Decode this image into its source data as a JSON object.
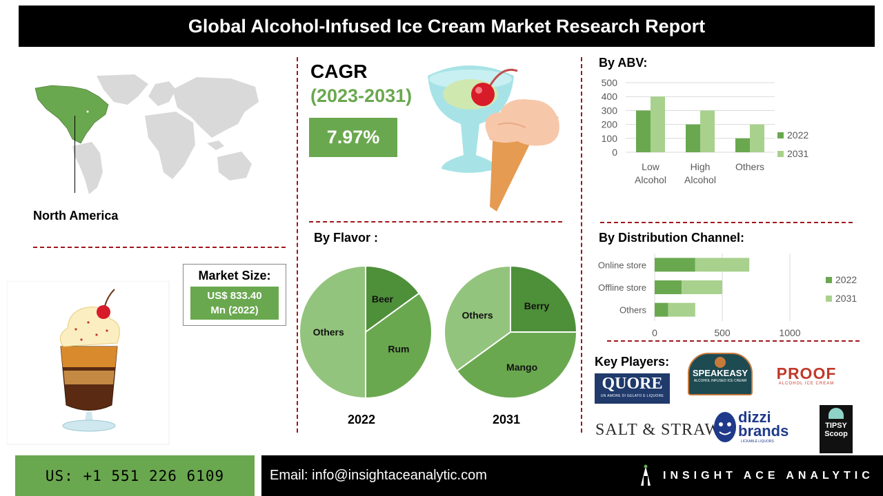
{
  "header": {
    "title": "Global Alcohol-Infused Ice Cream Market Research Report"
  },
  "region": {
    "label": "North America"
  },
  "cagr": {
    "title": "CAGR",
    "period": "(2023-2031)",
    "value": "7.97%"
  },
  "market_size": {
    "label": "Market Size:",
    "value_line1": "US$ 833.40",
    "value_line2": "Mn (2022)"
  },
  "sections": {
    "abv": "By ABV:",
    "flavor": "By Flavor :",
    "distribution": "By Distribution Channel:",
    "key_players": "Key Players:"
  },
  "key_players": [
    {
      "name": "QUORE",
      "tagline": "UN AMORE DI GELATO E LIQUORE"
    },
    {
      "name": "SPEAKEASY",
      "tagline": "ALCOHOL INFUSED ICE CREAM"
    },
    {
      "name": "PROOF",
      "tagline": "ALCOHOL ICE CREAM"
    },
    {
      "name": "SALT & STRAW"
    },
    {
      "name": "dizzi brands",
      "tagline": "LICKABLE LIQUORS"
    },
    {
      "name": "TIPSY Scoop"
    }
  ],
  "footer": {
    "phone": "US: +1 551 226 6109",
    "email": "Email: info@insightaceanalytic.com",
    "brand": "INSIGHT ACE ANALYTIC"
  },
  "colors": {
    "dark_green": "#6aa84f",
    "light_green": "#a9d18e",
    "mid_green": "#93c47d",
    "deep_green": "#4e8f3a",
    "dash_red": "#a01418"
  },
  "chart_data": [
    {
      "type": "bar",
      "title": "By ABV:",
      "categories": [
        "Low Alcohol",
        "High Alcohol",
        "Others"
      ],
      "category_lines": [
        [
          "Low",
          "Alcohol"
        ],
        [
          "High",
          "Alcohol"
        ],
        [
          "Others"
        ]
      ],
      "series": [
        {
          "name": "2022",
          "values": [
            300,
            200,
            100
          ],
          "color": "#6aa84f"
        },
        {
          "name": "2031",
          "values": [
            400,
            300,
            200
          ],
          "color": "#a9d18e"
        }
      ],
      "ylim": [
        0,
        500
      ],
      "yticks": [
        0,
        100,
        200,
        300,
        400,
        500
      ],
      "grid": true,
      "legend": "right"
    },
    {
      "type": "bar",
      "orientation": "horizontal",
      "stacked": true,
      "title": "By Distribution Channel:",
      "categories": [
        "Online store",
        "Offline store",
        "Others"
      ],
      "series": [
        {
          "name": "2022",
          "values": [
            300,
            200,
            100
          ],
          "color": "#6aa84f"
        },
        {
          "name": "2031",
          "values": [
            400,
            300,
            200
          ],
          "color": "#a9d18e"
        }
      ],
      "xlim": [
        0,
        1000
      ],
      "xticks": [
        0,
        500,
        1000
      ],
      "grid": true,
      "legend": "right"
    },
    {
      "type": "pie",
      "title": "2022",
      "slices": [
        {
          "label": "Beer",
          "value": 15,
          "color": "#4e8f3a"
        },
        {
          "label": "Rum",
          "value": 35,
          "color": "#6aa84f"
        },
        {
          "label": "Others",
          "value": 50,
          "color": "#93c47d"
        }
      ]
    },
    {
      "type": "pie",
      "title": "2031",
      "slices": [
        {
          "label": "Berry",
          "value": 25,
          "color": "#4e8f3a"
        },
        {
          "label": "Mango",
          "value": 40,
          "color": "#6aa84f"
        },
        {
          "label": "Others",
          "value": 35,
          "color": "#93c47d"
        }
      ]
    }
  ]
}
